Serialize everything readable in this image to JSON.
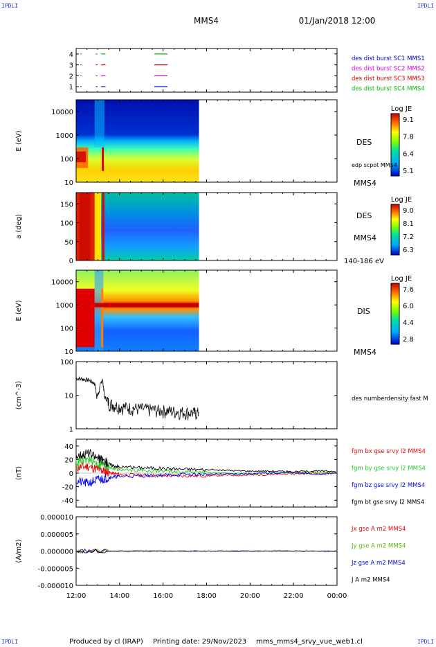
{
  "header": {
    "corner_tl": "IPDLI",
    "corner_tr": "IPDLI",
    "corner_bl": "IPDLI",
    "corner_br": "IPDLI",
    "spacecraft": "MMS4",
    "datetime": "01/Jan/2018 12:00"
  },
  "footer": {
    "produced": "Produced by cl (IRAP)",
    "printing": "Printing date: 29/Nov/2023",
    "file": "mms_mms4_srvy_vue_web1.cl"
  },
  "colors": {
    "mms1": "#0000cc",
    "mms2": "#dd00dd",
    "mms3": "#dd0000",
    "mms4": "#00bb00",
    "bx": "#ee0000",
    "by": "#22cc22",
    "bz": "#0000ee",
    "bt": "#000000",
    "jx": "#ee0000",
    "jy": "#55bb00",
    "jz": "#0000cc",
    "j": "#000000"
  },
  "time_axis": {
    "ticks": [
      "12:00",
      "14:00",
      "16:00",
      "18:00",
      "20:00",
      "22:00",
      "00:00"
    ],
    "hours": [
      12,
      14,
      16,
      18,
      20,
      22,
      24
    ]
  },
  "chart_data": [
    {
      "type": "scatter",
      "id": "burst",
      "ylim": [
        0.5,
        4.5
      ],
      "y_ticks": [
        "1",
        "2",
        "3",
        "4"
      ],
      "legend": [
        "des dist burst SC1 MMS1",
        "des dist burst SC2 MMS2",
        "des dist burst SC3 MMS3",
        "des dist burst SC4 MMS4"
      ],
      "segments": [
        {
          "sc": 4,
          "intervals": [
            [
              12.2,
              12.25
            ],
            [
              12.9,
              12.98
            ],
            [
              13.15,
              13.35
            ],
            [
              15.6,
              16.2
            ]
          ]
        },
        {
          "sc": 3,
          "intervals": [
            [
              12.2,
              12.25
            ],
            [
              12.9,
              12.98
            ],
            [
              13.15,
              13.35
            ],
            [
              15.6,
              16.2
            ]
          ]
        },
        {
          "sc": 2,
          "intervals": [
            [
              12.2,
              12.25
            ],
            [
              12.9,
              12.98
            ],
            [
              13.15,
              13.35
            ],
            [
              15.6,
              16.2
            ]
          ]
        },
        {
          "sc": 1,
          "intervals": [
            [
              12.2,
              12.25
            ],
            [
              12.9,
              12.98
            ],
            [
              13.15,
              13.35
            ],
            [
              15.6,
              16.2
            ]
          ]
        }
      ]
    },
    {
      "type": "heatmap",
      "id": "des_energy",
      "ylabel": "E (eV)",
      "y_ticks": [
        "10",
        "100",
        "1000",
        "10000"
      ],
      "colorbar_title": "Log JE",
      "colorbar_ticks": [
        "9.1",
        "7.8",
        "6.4",
        "5.1"
      ],
      "instrument": "DES",
      "note": "edp scpot MMS4",
      "craft": "MMS4",
      "data_end_hour": 17.65
    },
    {
      "type": "heatmap",
      "id": "des_pitch",
      "ylabel": "a (deg)",
      "y_ticks": [
        "0",
        "50",
        "100",
        "150"
      ],
      "ylim": [
        0,
        180
      ],
      "colorbar_title": "Log JE",
      "colorbar_ticks": [
        "9.0",
        "8.1",
        "7.2",
        "6.3"
      ],
      "instrument": "DES",
      "craft": "MMS4",
      "energy_range": "140-186 eV",
      "data_end_hour": 17.65
    },
    {
      "type": "heatmap",
      "id": "dis_energy",
      "ylabel": "E (eV)",
      "y_ticks": [
        "10",
        "100",
        "1000",
        "10000"
      ],
      "colorbar_title": "Log JE",
      "colorbar_ticks": [
        "7.6",
        "6.0",
        "4.4",
        "2.8"
      ],
      "instrument": "DIS",
      "craft": "MMS4",
      "data_end_hour": 17.65
    },
    {
      "type": "line",
      "id": "density",
      "ylabel": "(cm^-3)",
      "y_ticks": [
        "1",
        "10",
        "100"
      ],
      "ylim": [
        1,
        100
      ],
      "log": true,
      "legend": "des numberdensity fast M",
      "x": [
        12.0,
        12.3,
        12.6,
        12.85,
        12.95,
        13.05,
        13.2,
        13.3,
        13.5,
        13.8,
        14.2,
        14.6,
        15.0,
        15.4,
        15.8,
        16.2,
        16.6,
        17.0,
        17.4,
        17.65
      ],
      "y": [
        32,
        30,
        28,
        22,
        9,
        12,
        30,
        9,
        6,
        5,
        4.5,
        4.2,
        4,
        3.8,
        3.6,
        3.5,
        3.3,
        3.2,
        3.0,
        3.0
      ]
    },
    {
      "type": "line",
      "id": "field",
      "ylabel": "(nT)",
      "y_ticks": [
        "40",
        "20",
        "0",
        "-20",
        "-40"
      ],
      "ylim": [
        -50,
        50
      ],
      "legend": [
        "fgm bx gse srvy l2 MMS4",
        "fgm by gse srvy l2 MMS4",
        "fgm bz gse srvy l2 MMS4",
        "fgm bt gse srvy l2 MMS4"
      ],
      "x": [
        12.0,
        12.5,
        13.0,
        13.3,
        13.6,
        14.0,
        15.0,
        16.0,
        17.0,
        18.0,
        19.0,
        20.0,
        21.0,
        22.0,
        23.0,
        24.0
      ],
      "series": [
        {
          "values": [
            8,
            10,
            6,
            3,
            0,
            -2,
            -3,
            -4,
            -4,
            -4,
            -3,
            -3,
            -2,
            -1,
            0,
            0
          ]
        },
        {
          "values": [
            15,
            20,
            14,
            12,
            8,
            5,
            4,
            3,
            2,
            1,
            0,
            -1,
            0,
            1,
            1,
            2
          ]
        },
        {
          "values": [
            -12,
            -15,
            -10,
            -8,
            -6,
            -5,
            -4,
            -3,
            -2,
            -2,
            -1,
            -1,
            0,
            1,
            -2,
            0
          ]
        },
        {
          "values": [
            25,
            30,
            22,
            18,
            12,
            9,
            8,
            7,
            6,
            5,
            4,
            3,
            3,
            2,
            3,
            3
          ]
        }
      ]
    },
    {
      "type": "line",
      "id": "current",
      "ylabel": "(A/m2)",
      "y_ticks": [
        "0.000010",
        "0.000005",
        "0.000000",
        "-0.000005",
        "-0.000010"
      ],
      "ylim": [
        -1e-05,
        1e-05
      ],
      "legend": [
        "Jx gse A m2 MMS4",
        "Jy gse A m2 MMS4",
        "Jz gse A m2 MMS4",
        "J A m2 MMS4"
      ],
      "x": [
        12.0,
        24.0
      ],
      "series": [
        {
          "values": [
            0,
            0
          ]
        },
        {
          "values": [
            0,
            0
          ]
        },
        {
          "values": [
            0,
            0
          ]
        },
        {
          "values": [
            0,
            0
          ]
        }
      ]
    }
  ]
}
